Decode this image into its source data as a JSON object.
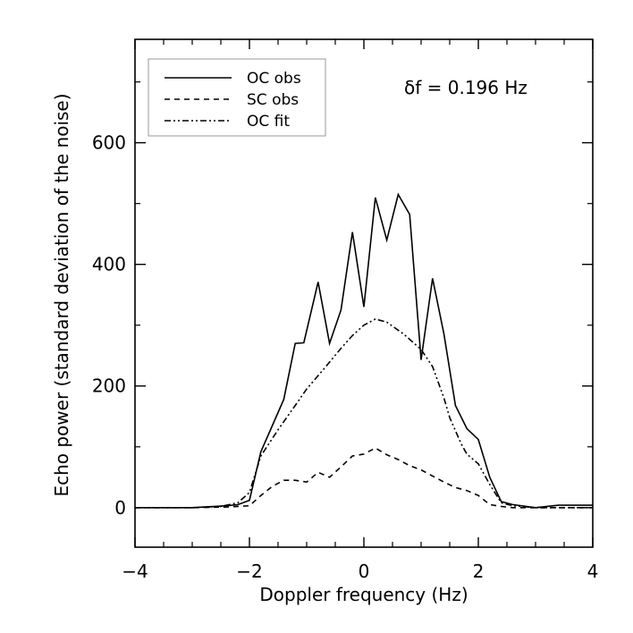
{
  "chart_data": {
    "type": "line",
    "title": "",
    "xlabel": "Doppler frequency (Hz)",
    "ylabel": "Echo power (standard deviation of the noise)",
    "xlim": [
      -4,
      4
    ],
    "ylim": [
      -65,
      770
    ],
    "x_ticks": [
      -4,
      -2,
      0,
      2,
      4
    ],
    "x_tick_labels": [
      "−4",
      "−2",
      "0",
      "2",
      "4"
    ],
    "y_ticks": [
      0,
      200,
      400,
      600
    ],
    "y_tick_labels": [
      "0",
      "200",
      "400",
      "600"
    ],
    "annotation": "δf = 0.196 Hz",
    "legend_position": "top-left",
    "series": [
      {
        "name": "OC obs",
        "dash": "solid",
        "x": [
          -4.0,
          -3.0,
          -2.4,
          -2.2,
          -2.0,
          -1.8,
          -1.6,
          -1.4,
          -1.2,
          -1.05,
          -0.8,
          -0.6,
          -0.4,
          -0.2,
          0.0,
          0.2,
          0.4,
          0.6,
          0.8,
          1.0,
          1.2,
          1.4,
          1.6,
          1.8,
          2.0,
          2.2,
          2.4,
          2.6,
          3.0,
          3.4,
          4.0
        ],
        "y": [
          0,
          0,
          3,
          5,
          12,
          92,
          135,
          178,
          270,
          271,
          371,
          270,
          325,
          453,
          330,
          510,
          440,
          515,
          482,
          243,
          377,
          285,
          168,
          130,
          112,
          50,
          10,
          5,
          0,
          4,
          4
        ]
      },
      {
        "name": "SC obs",
        "dash": "dashed",
        "x": [
          -4.0,
          -3.0,
          -2.4,
          -2.2,
          -2.0,
          -1.8,
          -1.6,
          -1.4,
          -1.2,
          -1.0,
          -0.8,
          -0.6,
          -0.4,
          -0.2,
          0.0,
          0.2,
          0.4,
          0.6,
          0.8,
          1.0,
          1.2,
          1.4,
          1.6,
          1.8,
          2.0,
          2.2,
          2.4,
          2.6,
          3.0,
          4.0
        ],
        "y": [
          0,
          0,
          1,
          2,
          3,
          20,
          35,
          45,
          45,
          42,
          58,
          50,
          67,
          85,
          88,
          98,
          87,
          79,
          69,
          62,
          52,
          42,
          33,
          28,
          20,
          5,
          2,
          0,
          0,
          0
        ]
      },
      {
        "name": "OC fit",
        "dash": "dashdotdot",
        "x": [
          -4.0,
          -3.0,
          -2.5,
          -2.2,
          -2.0,
          -1.8,
          -1.5,
          -1.2,
          -1.0,
          -0.7,
          -0.4,
          -0.2,
          0.0,
          0.2,
          0.4,
          0.7,
          1.0,
          1.2,
          1.4,
          1.5,
          1.7,
          1.8,
          2.0,
          2.2,
          2.4,
          2.6,
          3.0,
          4.0
        ],
        "y": [
          0,
          0,
          2,
          8,
          25,
          85,
          128,
          168,
          195,
          228,
          262,
          283,
          300,
          310,
          305,
          285,
          260,
          232,
          180,
          148,
          105,
          88,
          72,
          38,
          8,
          3,
          0,
          0
        ]
      }
    ]
  }
}
